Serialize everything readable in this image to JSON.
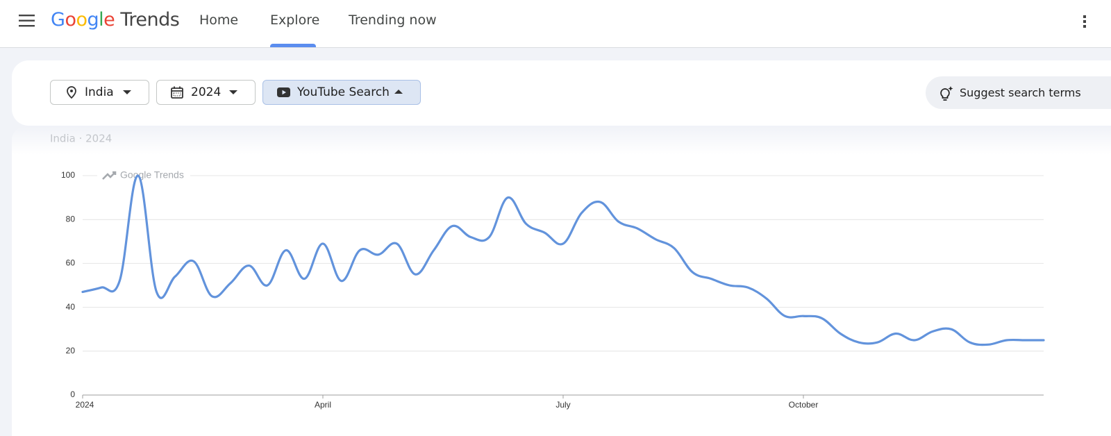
{
  "header": {
    "logo_google": "Google",
    "logo_trends": "Trends",
    "nav": [
      "Home",
      "Explore",
      "Trending now"
    ]
  },
  "filters": {
    "location": "India",
    "period": "2024",
    "property": "YouTube Search",
    "suggest": "Suggest search terms"
  },
  "chart_data": {
    "type": "line",
    "subtitle": "India · 2024",
    "watermark": "Google Trends",
    "categories": [
      "2024",
      null,
      null,
      null,
      null,
      null,
      null,
      null,
      null,
      null,
      null,
      null,
      null,
      "April",
      null,
      null,
      null,
      null,
      null,
      null,
      null,
      null,
      null,
      null,
      null,
      null,
      "July",
      null,
      null,
      null,
      null,
      null,
      null,
      null,
      null,
      null,
      null,
      null,
      null,
      "October",
      null,
      null,
      null,
      null,
      null,
      null,
      null,
      null,
      null,
      null,
      null,
      null,
      null
    ],
    "values": [
      47,
      49,
      52,
      100,
      47,
      54,
      61,
      45,
      51,
      59,
      50,
      66,
      53,
      69,
      52,
      66,
      64,
      69,
      55,
      66,
      77,
      72,
      72,
      90,
      78,
      74,
      69,
      83,
      88,
      79,
      76,
      71,
      67,
      56,
      53,
      50,
      49,
      44,
      36,
      36,
      35,
      28,
      24,
      24,
      28,
      25,
      29,
      30,
      24,
      23,
      25,
      25,
      25
    ],
    "color": "#6293dc",
    "ylim": [
      0,
      100
    ],
    "yticks": [
      0,
      20,
      40,
      60,
      80,
      100
    ],
    "grid": true
  }
}
